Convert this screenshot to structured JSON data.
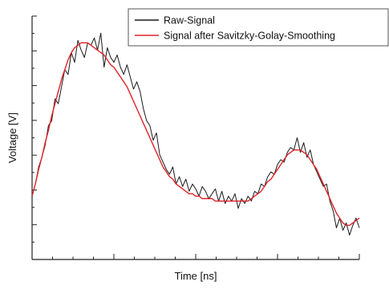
{
  "chart_data": {
    "type": "line",
    "title": "",
    "xlabel": "Time [ns]",
    "ylabel": "Voltage [V]",
    "xlim": [
      0,
      100
    ],
    "ylim": [
      0,
      100
    ],
    "grid": false,
    "legend_position": "top-right",
    "x_tick_labels": [],
    "y_tick_labels": [],
    "series": [
      {
        "name": "Raw-Signal",
        "color": "#1a1a1a",
        "x": [
          0,
          1,
          2,
          3,
          4,
          5,
          6,
          7,
          8,
          9,
          10,
          11,
          12,
          13,
          14,
          15,
          16,
          17,
          18,
          19,
          20,
          21,
          22,
          23,
          24,
          25,
          26,
          27,
          28,
          29,
          30,
          31,
          32,
          33,
          34,
          35,
          36,
          37,
          38,
          39,
          40,
          41,
          42,
          43,
          44,
          45,
          46,
          47,
          48,
          49,
          50,
          51,
          52,
          53,
          54,
          55,
          56,
          57,
          58,
          59,
          60,
          61,
          62,
          63,
          64,
          65,
          66,
          67,
          68,
          69,
          70,
          71,
          72,
          73,
          74,
          75,
          76,
          77,
          78,
          79,
          80,
          81,
          82,
          83,
          84,
          85,
          86,
          87,
          88,
          89,
          90,
          91,
          92,
          93,
          94,
          95,
          96,
          97,
          98,
          99,
          100
        ],
        "y": [
          26,
          31,
          38,
          42,
          47,
          55,
          57,
          66,
          64,
          71,
          78,
          76,
          85,
          81,
          90,
          86,
          83,
          89,
          88,
          91,
          86,
          93,
          79,
          87,
          83,
          81,
          84,
          79,
          76,
          80,
          75,
          70,
          73,
          69,
          62,
          57,
          55,
          49,
          52,
          43,
          40,
          37,
          35,
          38,
          31,
          34,
          30,
          33,
          28,
          31,
          29,
          26,
          30,
          28,
          25,
          27,
          29,
          24,
          28,
          23,
          26,
          24,
          27,
          21,
          25,
          23,
          26,
          24,
          28,
          27,
          31,
          30,
          34,
          36,
          35,
          39,
          41,
          40,
          44,
          46,
          45,
          50,
          44,
          48,
          42,
          45,
          39,
          36,
          33,
          30,
          31,
          24,
          20,
          13,
          17,
          12,
          15,
          10,
          14,
          17,
          13
        ]
      },
      {
        "name": "Signal after Savitzky-Golay-Smoothing",
        "color": "#e0232a",
        "x": [
          0,
          1,
          2,
          3,
          4,
          5,
          6,
          7,
          8,
          9,
          10,
          11,
          12,
          13,
          14,
          15,
          16,
          17,
          18,
          19,
          20,
          21,
          22,
          23,
          24,
          25,
          26,
          27,
          28,
          29,
          30,
          31,
          32,
          33,
          34,
          35,
          36,
          37,
          38,
          39,
          40,
          41,
          42,
          43,
          44,
          45,
          46,
          47,
          48,
          49,
          50,
          51,
          52,
          53,
          54,
          55,
          56,
          57,
          58,
          59,
          60,
          61,
          62,
          63,
          64,
          65,
          66,
          67,
          68,
          69,
          70,
          71,
          72,
          73,
          74,
          75,
          76,
          77,
          78,
          79,
          80,
          81,
          82,
          83,
          84,
          85,
          86,
          87,
          88,
          89,
          90,
          91,
          92,
          93,
          94,
          95,
          96,
          97,
          98,
          99,
          100
        ],
        "y": [
          26,
          31,
          37,
          42,
          48,
          53,
          59,
          64,
          69,
          74,
          78,
          82,
          85,
          87,
          88,
          89,
          89,
          89,
          88,
          87,
          86,
          85,
          84,
          82,
          80,
          79,
          77,
          75,
          73,
          71,
          68,
          65,
          62,
          59,
          56,
          53,
          50,
          47,
          44,
          41,
          38,
          36,
          34,
          33,
          31,
          30,
          29,
          28,
          27,
          27,
          26,
          26,
          25,
          25,
          25,
          25,
          24,
          24,
          24,
          24,
          24,
          24,
          24,
          24,
          24,
          24,
          24,
          25,
          26,
          27,
          28,
          30,
          32,
          33,
          35,
          37,
          39,
          41,
          43,
          44,
          45,
          45,
          45,
          44,
          43,
          41,
          39,
          37,
          34,
          31,
          28,
          25,
          22,
          19,
          17,
          15,
          14,
          14,
          15,
          16,
          17
        ]
      }
    ]
  }
}
